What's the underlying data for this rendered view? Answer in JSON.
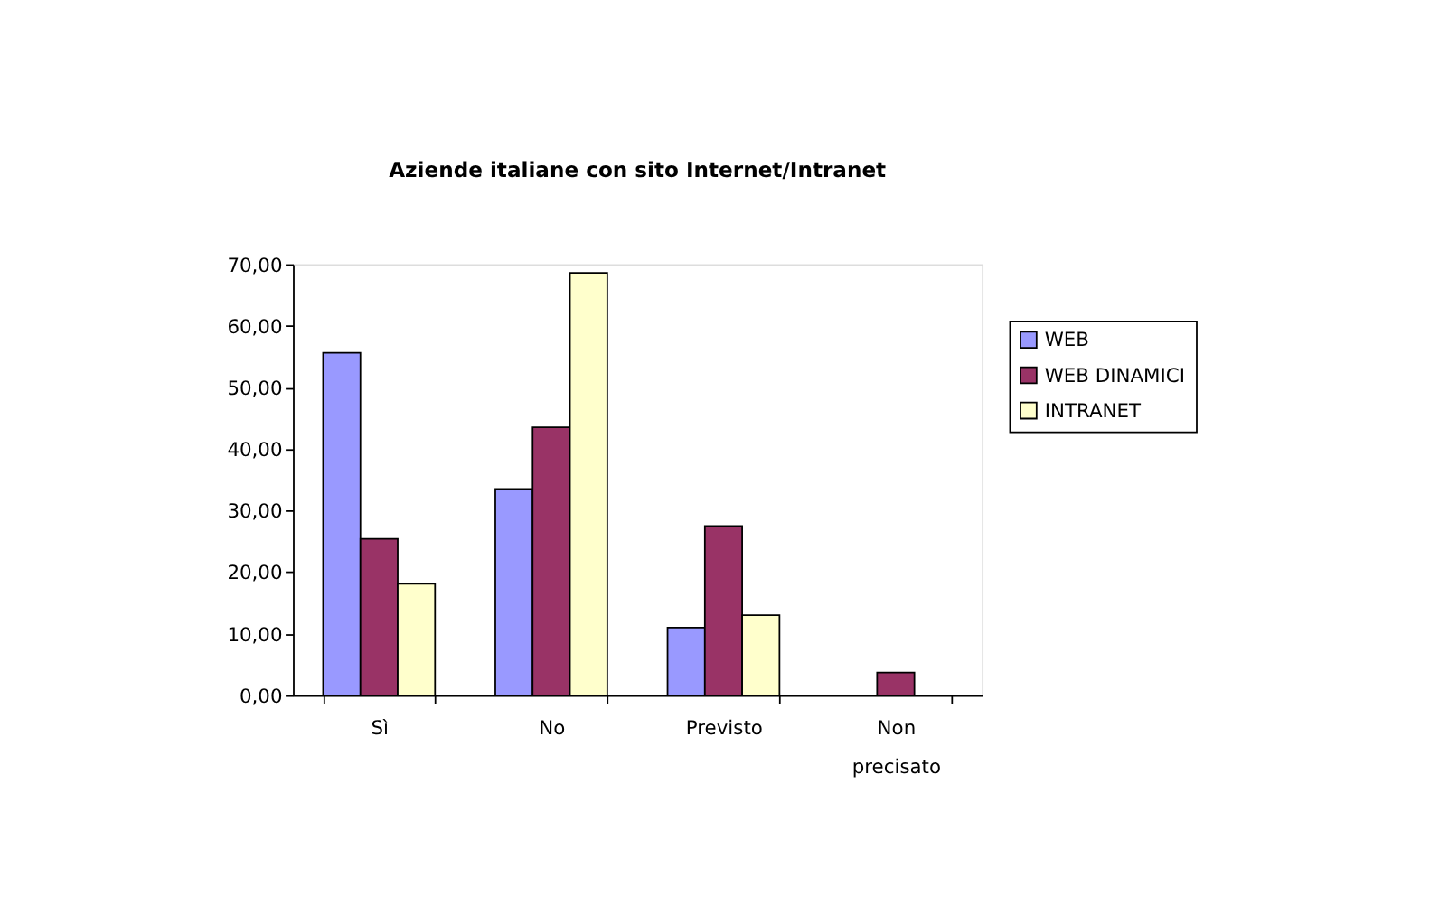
{
  "chart_data": {
    "type": "bar",
    "title": "Aziende italiane con sito Internet/Intranet",
    "categories": [
      "Sì",
      "No",
      "Previsto",
      "Non precisato"
    ],
    "series": [
      {
        "name": "WEB",
        "color": "#9999ff",
        "values": [
          55.6,
          33.5,
          11.0,
          0
        ]
      },
      {
        "name": "WEB DINAMICI",
        "color": "#993366",
        "values": [
          25.4,
          43.5,
          27.5,
          3.7
        ]
      },
      {
        "name": "INTRANET",
        "color": "#ffffcc",
        "values": [
          18.1,
          68.6,
          13.0,
          0
        ]
      }
    ],
    "ylim": [
      0,
      70
    ],
    "yticks": [
      {
        "value": 0,
        "label": "0,00"
      },
      {
        "value": 10,
        "label": "10,00"
      },
      {
        "value": 20,
        "label": "20,00"
      },
      {
        "value": 30,
        "label": "30,00"
      },
      {
        "value": 40,
        "label": "40,00"
      },
      {
        "value": 50,
        "label": "50,00"
      },
      {
        "value": 60,
        "label": "60,00"
      },
      {
        "value": 70,
        "label": "70,00"
      }
    ],
    "grid": false,
    "legend": "right"
  }
}
